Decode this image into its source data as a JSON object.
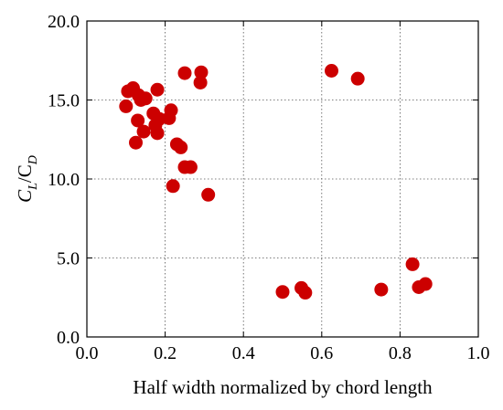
{
  "chart_data": {
    "type": "scatter",
    "title": "",
    "xlabel": "Half width normalized by chord length",
    "ylabel": {
      "main": "C",
      "sub1": "L",
      "slash": "/C",
      "sub2": "D"
    },
    "xlim": [
      0.0,
      1.0
    ],
    "ylim": [
      0.0,
      20.0
    ],
    "xticks": [
      0.0,
      0.2,
      0.4,
      0.6,
      0.8,
      1.0
    ],
    "yticks": [
      0.0,
      5.0,
      10.0,
      15.0,
      20.0
    ],
    "xtick_labels": [
      "0.0",
      "0.2",
      "0.4",
      "0.6",
      "0.8",
      "1.0"
    ],
    "ytick_labels": [
      "0.0",
      "5.0",
      "10.0",
      "15.0",
      "20.0"
    ],
    "grid": true,
    "marker_color": "#cc0000",
    "series": [
      {
        "points": [
          [
            0.105,
            15.55
          ],
          [
            0.118,
            15.75
          ],
          [
            0.1,
            14.6
          ],
          [
            0.132,
            15.3
          ],
          [
            0.15,
            15.1
          ],
          [
            0.138,
            15.0
          ],
          [
            0.18,
            15.65
          ],
          [
            0.13,
            13.7
          ],
          [
            0.125,
            12.3
          ],
          [
            0.145,
            13.0
          ],
          [
            0.17,
            14.15
          ],
          [
            0.185,
            13.8
          ],
          [
            0.175,
            13.4
          ],
          [
            0.21,
            13.85
          ],
          [
            0.215,
            14.35
          ],
          [
            0.18,
            12.9
          ],
          [
            0.23,
            12.2
          ],
          [
            0.24,
            12.0
          ],
          [
            0.25,
            10.75
          ],
          [
            0.265,
            10.75
          ],
          [
            0.22,
            9.55
          ],
          [
            0.31,
            9.0
          ],
          [
            0.25,
            16.7
          ],
          [
            0.292,
            16.75
          ],
          [
            0.29,
            16.1
          ],
          [
            0.625,
            16.85
          ],
          [
            0.692,
            16.35
          ],
          [
            0.5,
            2.85
          ],
          [
            0.548,
            3.1
          ],
          [
            0.558,
            2.8
          ],
          [
            0.752,
            3.0
          ],
          [
            0.832,
            4.6
          ],
          [
            0.848,
            3.15
          ],
          [
            0.865,
            3.35
          ]
        ]
      }
    ]
  }
}
